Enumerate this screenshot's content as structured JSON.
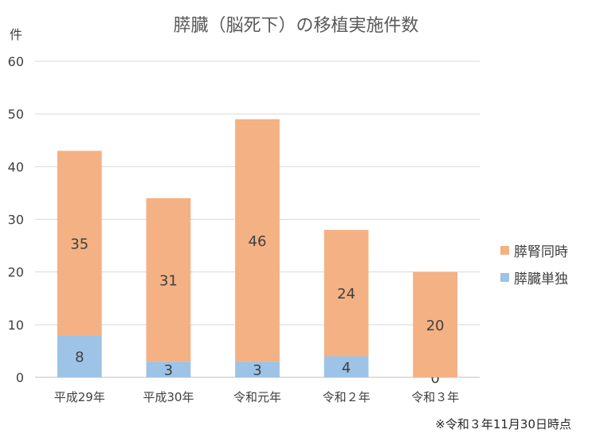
{
  "chart_data": {
    "type": "bar",
    "stacked": true,
    "title": "膵臓（脳死下）の移植実施件数",
    "ylabel": "件",
    "categories": [
      "平成29年",
      "平成30年",
      "令和元年",
      "令和２年",
      "令和３年"
    ],
    "series": [
      {
        "name": "膵臓単独",
        "values": [
          8,
          3,
          3,
          4,
          0
        ],
        "color": "#9dc3e6"
      },
      {
        "name": "膵腎同時",
        "values": [
          35,
          31,
          46,
          24,
          20
        ],
        "color": "#f4b183"
      }
    ],
    "ylim": [
      0,
      60
    ],
    "yticks": [
      0,
      10,
      20,
      30,
      40,
      50,
      60
    ],
    "grid": true,
    "legend": "right",
    "footnote": "※令和３年11月30日時点"
  }
}
